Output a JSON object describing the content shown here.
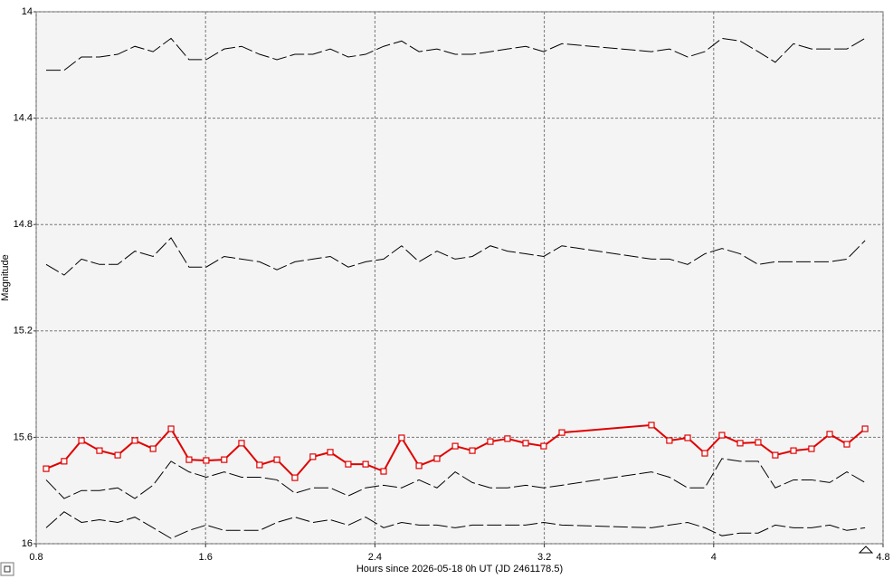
{
  "chart_data": {
    "type": "line",
    "xlabel": "Hours since 2026-05-18 0h UT (JD 2461178.5)",
    "ylabel": "Magnitude",
    "x": [
      0.847,
      0.932,
      1.014,
      1.099,
      1.185,
      1.266,
      1.352,
      1.437,
      1.522,
      1.603,
      1.688,
      1.77,
      1.855,
      1.937,
      2.022,
      2.107,
      2.189,
      2.274,
      2.356,
      2.441,
      2.526,
      2.608,
      2.693,
      2.779,
      2.86,
      2.945,
      3.026,
      3.112,
      3.197,
      3.283,
      3.706,
      3.791,
      3.877,
      3.958,
      4.039,
      4.125,
      4.21,
      4.291,
      4.377,
      4.462,
      4.548,
      4.629,
      4.715
    ],
    "series": [
      {
        "color": "#000000",
        "line_style": "dashed",
        "values": [
          14.22,
          14.22,
          14.17,
          14.17,
          14.16,
          14.13,
          14.15,
          14.1,
          14.18,
          14.18,
          14.14,
          14.13,
          14.16,
          14.18,
          14.16,
          14.16,
          14.14,
          14.17,
          14.16,
          14.13,
          14.11,
          14.15,
          14.14,
          14.16,
          14.16,
          14.15,
          14.14,
          14.13,
          14.15,
          14.12,
          14.15,
          14.14,
          14.17,
          14.15,
          14.1,
          14.11,
          14.15,
          14.19,
          14.12,
          14.14,
          14.14,
          14.14,
          14.1
        ]
      },
      {
        "color": "#000000",
        "line_style": "dashed",
        "values": [
          14.95,
          14.99,
          14.93,
          14.95,
          14.95,
          14.9,
          14.92,
          14.85,
          14.96,
          14.96,
          14.92,
          14.93,
          14.94,
          14.97,
          14.94,
          14.93,
          14.92,
          14.96,
          14.94,
          14.93,
          14.88,
          14.94,
          14.9,
          14.93,
          14.92,
          14.88,
          14.9,
          14.91,
          14.92,
          14.88,
          14.93,
          14.93,
          14.95,
          14.91,
          14.89,
          14.91,
          14.95,
          14.94,
          14.94,
          14.94,
          14.94,
          14.93,
          14.86
        ]
      },
      {
        "color": "#e00000",
        "line_style": "solid",
        "marker": "square",
        "values": [
          15.718,
          15.69,
          15.612,
          15.65,
          15.667,
          15.612,
          15.643,
          15.568,
          15.684,
          15.687,
          15.684,
          15.622,
          15.704,
          15.684,
          15.752,
          15.673,
          15.656,
          15.701,
          15.701,
          15.728,
          15.602,
          15.707,
          15.68,
          15.633,
          15.65,
          15.616,
          15.605,
          15.622,
          15.633,
          15.582,
          15.554,
          15.612,
          15.602,
          15.66,
          15.592,
          15.622,
          15.619,
          15.667,
          15.65,
          15.643,
          15.588,
          15.626,
          15.568
        ]
      },
      {
        "color": "#000000",
        "line_style": "dashed",
        "values": [
          15.76,
          15.83,
          15.8,
          15.8,
          15.79,
          15.83,
          15.78,
          15.69,
          15.73,
          15.75,
          15.73,
          15.75,
          15.75,
          15.76,
          15.81,
          15.79,
          15.79,
          15.82,
          15.79,
          15.78,
          15.79,
          15.76,
          15.79,
          15.73,
          15.77,
          15.79,
          15.79,
          15.78,
          15.79,
          15.78,
          15.73,
          15.75,
          15.79,
          15.79,
          15.68,
          15.69,
          15.69,
          15.79,
          15.76,
          15.76,
          15.77,
          15.73,
          15.77
        ]
      },
      {
        "color": "#000000",
        "line_style": "dashed",
        "values": [
          15.94,
          15.88,
          15.92,
          15.91,
          15.92,
          15.9,
          15.94,
          15.98,
          15.95,
          15.93,
          15.95,
          15.95,
          15.95,
          15.92,
          15.9,
          15.92,
          15.91,
          15.93,
          15.9,
          15.94,
          15.92,
          15.93,
          15.93,
          15.94,
          15.93,
          15.93,
          15.93,
          15.93,
          15.92,
          15.93,
          15.94,
          15.93,
          15.92,
          15.94,
          15.97,
          15.96,
          15.96,
          15.93,
          15.94,
          15.94,
          15.93,
          15.95,
          15.94
        ]
      }
    ],
    "xlim": [
      0.8,
      4.8
    ],
    "xticks": [
      0.8,
      1.6,
      2.4,
      3.2,
      4,
      4.8
    ],
    "ylim": [
      14,
      16
    ],
    "yticks": [
      14,
      14.4,
      14.8,
      15.2,
      15.6,
      16
    ],
    "y_inverted": true,
    "grid": true
  }
}
